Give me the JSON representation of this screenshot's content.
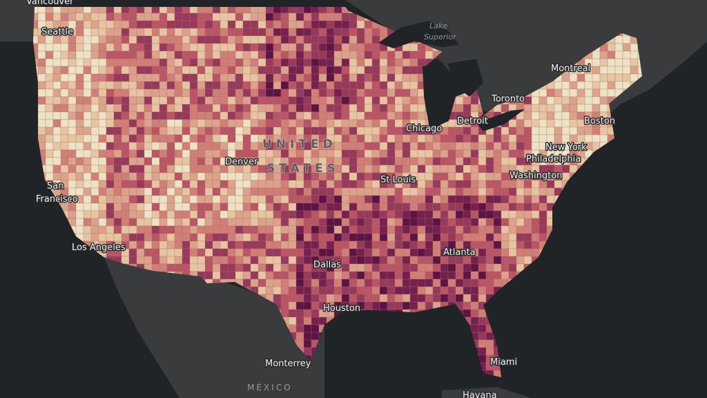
{
  "map": {
    "labels": [
      "Vancouver",
      "Seattle",
      "San",
      "Francisco",
      "Los Angeles",
      "Denver",
      "UNITED",
      "STATES",
      "Lake",
      "Superior",
      "Montreal",
      "Toronto",
      "Chicago",
      "Detroit",
      "Boston",
      "New York",
      "Philadelphia",
      "Washington",
      "St Louis",
      "Dallas",
      "Houston",
      "Atlanta",
      "Miami",
      "Monterrey",
      "MÉXICO",
      "Havana"
    ]
  }
}
